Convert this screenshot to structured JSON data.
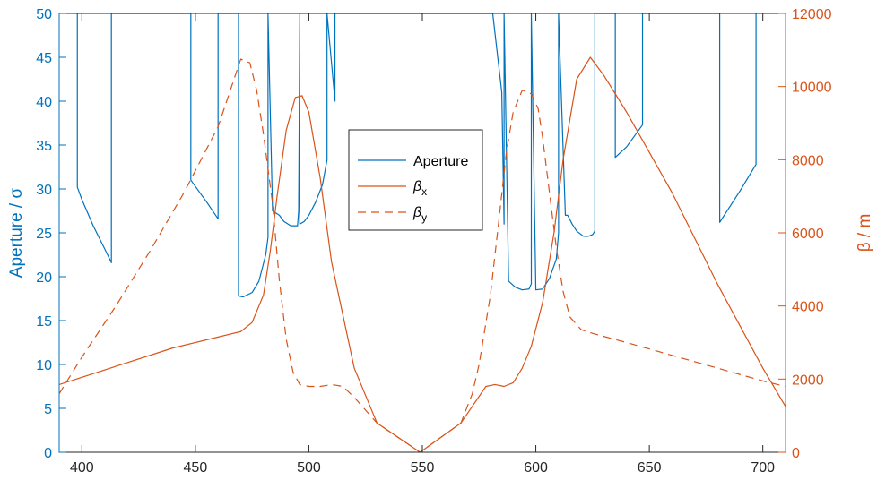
{
  "chart_data": {
    "type": "line",
    "xlim": [
      390,
      710
    ],
    "ylim_left": [
      0,
      50
    ],
    "ylim_right": [
      0,
      12000
    ],
    "xticks": [
      400,
      450,
      500,
      550,
      600,
      650,
      700
    ],
    "yticks_left": [
      0,
      5,
      10,
      15,
      20,
      25,
      30,
      35,
      40,
      45,
      50
    ],
    "yticks_right": [
      0,
      2000,
      4000,
      6000,
      8000,
      10000,
      12000
    ],
    "xlabel": "",
    "ylabel_left": "Aperture / σ",
    "ylabel_right": "β / m",
    "legend": {
      "placement": "center",
      "entries": [
        "Aperture",
        "β_x",
        "β_y"
      ]
    },
    "colors": {
      "aperture": "#0072BD",
      "beta": "#D95319",
      "axis_left": "#0072BD",
      "axis_right": "#D95319",
      "axis_bottom": "#262626"
    },
    "series": [
      {
        "name": "Aperture",
        "axis": "left",
        "style": "solid",
        "x": [
          398,
          398,
          400,
          405,
          410,
          413,
          413,
          448,
          448,
          455,
          460,
          460,
          469,
          469,
          471,
          475,
          478,
          481,
          482,
          482,
          484,
          487,
          489,
          492,
          495,
          495.5,
          496,
          496,
          498,
          500,
          503,
          506,
          508,
          508,
          511.5,
          511.5,
          515,
          581,
          585,
          586,
          586,
          588,
          591,
          594,
          597,
          598,
          598,
          600,
          603,
          606,
          609,
          610,
          610,
          613,
          614,
          616,
          618,
          620,
          621,
          623,
          625,
          626,
          626,
          635,
          635,
          640,
          647,
          647,
          681,
          681,
          685,
          690,
          697,
          697
        ],
        "y": [
          50,
          30.2,
          28.8,
          25.8,
          23.2,
          21.6,
          50,
          50,
          31,
          28.5,
          26.6,
          50,
          50,
          17.8,
          17.7,
          18.2,
          19.5,
          22.5,
          24.5,
          50,
          27.5,
          27,
          26.3,
          25.8,
          25.8,
          27.5,
          50,
          26,
          26.3,
          27,
          28.5,
          30.5,
          33.3,
          50,
          40,
          50,
          50,
          50,
          41,
          26,
          50,
          19.5,
          18.8,
          18.5,
          18.6,
          19.2,
          50,
          18.5,
          18.6,
          19.8,
          22,
          25,
          50,
          27,
          27,
          26,
          25.2,
          24.8,
          24.6,
          24.6,
          24.8,
          25.2,
          50,
          50,
          33.6,
          34.8,
          37.3,
          50,
          50,
          26.2,
          27.8,
          29.8,
          32.8,
          50
        ]
      },
      {
        "name": "β_x",
        "axis": "right",
        "style": "solid",
        "x": [
          390,
          400,
          420,
          440,
          460,
          470,
          475,
          480,
          483,
          486,
          490,
          494,
          497,
          500,
          505,
          510,
          520,
          530,
          549,
          567,
          578,
          582,
          586,
          590,
          594,
          598,
          603,
          608,
          612,
          618,
          624,
          630,
          640,
          660,
          680,
          700,
          710
        ],
        "y": [
          1850,
          2050,
          2450,
          2850,
          3150,
          3300,
          3550,
          4300,
          5500,
          7000,
          8800,
          9700,
          9750,
          9300,
          7500,
          5200,
          2300,
          800,
          0,
          800,
          1800,
          1850,
          1800,
          1900,
          2300,
          2900,
          4100,
          6000,
          8000,
          10200,
          10800,
          10300,
          9300,
          7100,
          4600,
          2300,
          1250
        ]
      },
      {
        "name": "β_y",
        "axis": "right",
        "style": "dashed",
        "x": [
          390,
          400,
          415,
          430,
          445,
          460,
          470,
          474,
          477,
          480,
          484,
          487,
          490,
          493,
          496,
          500,
          505,
          510,
          515,
          520,
          530,
          549,
          567,
          572,
          575,
          580,
          584,
          587,
          590,
          594,
          598,
          601,
          603,
          606,
          609,
          612,
          615,
          620,
          625,
          640,
          660,
          680,
          700,
          710
        ],
        "y": [
          1600,
          2600,
          4000,
          5500,
          7100,
          8900,
          10750,
          10650,
          9900,
          8700,
          6800,
          4700,
          3100,
          2200,
          1850,
          1800,
          1800,
          1850,
          1800,
          1500,
          800,
          0,
          800,
          1600,
          2400,
          4300,
          6500,
          8200,
          9300,
          9900,
          9800,
          9400,
          8600,
          7100,
          5600,
          4400,
          3700,
          3350,
          3250,
          3000,
          2650,
          2300,
          1950,
          1800
        ]
      }
    ]
  }
}
